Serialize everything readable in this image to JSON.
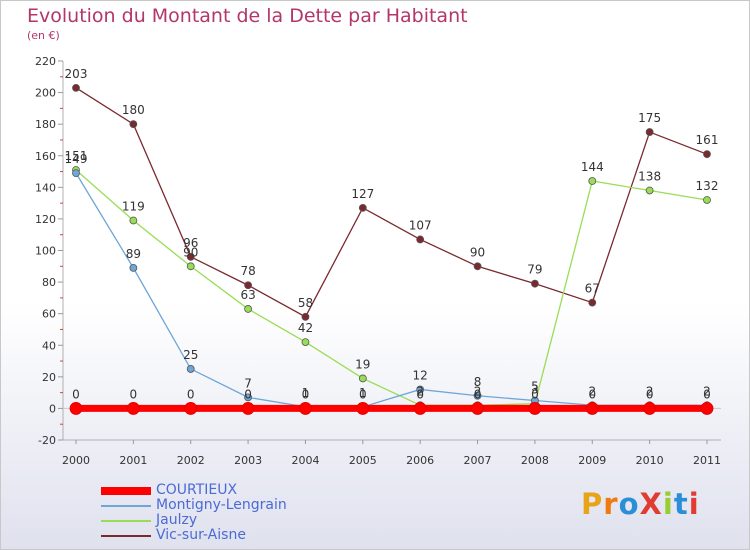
{
  "header": {
    "title": "Evolution du Montant de la Dette par Habitant",
    "subtitle": "(en €)"
  },
  "logo": {
    "text": "ProXiti",
    "colors": [
      "#e8a317",
      "#f07a10",
      "#2a8fd6",
      "#e03c31",
      "#9acd32",
      "#2a8fd6",
      "#e03c31"
    ]
  },
  "chart_data": {
    "type": "line",
    "x": [
      "2000",
      "2001",
      "2002",
      "2003",
      "2004",
      "2005",
      "2006",
      "2007",
      "2008",
      "2009",
      "2010",
      "2011"
    ],
    "ylim": [
      -20,
      220
    ],
    "yticks": [
      "-20",
      "0",
      "20",
      "40",
      "60",
      "80",
      "100",
      "120",
      "140",
      "160",
      "180",
      "200",
      "220"
    ],
    "grid": false,
    "legend_position": "bottom-left",
    "series": [
      {
        "name": "COURTIEUX",
        "color": "#ff0000",
        "values": [
          0,
          0,
          0,
          0,
          0,
          0,
          0,
          0,
          0,
          0,
          0,
          0
        ],
        "labels": [
          "0",
          "0",
          "0",
          "0",
          "0",
          "0",
          "0",
          "0",
          "0",
          "0",
          "0",
          "0"
        ]
      },
      {
        "name": "Montigny-Lengrain",
        "color": "#6ea6d8",
        "values": [
          149,
          89,
          25,
          7,
          1,
          1,
          12,
          8,
          5,
          2,
          2,
          2
        ],
        "labels": [
          "149",
          "89",
          "25",
          "7",
          "1",
          "1",
          "12",
          "8",
          "5",
          "2",
          "2",
          "2"
        ]
      },
      {
        "name": "Jaulzy",
        "color": "#99dd55",
        "values": [
          151,
          119,
          90,
          63,
          42,
          19,
          2,
          2,
          3,
          144,
          138,
          132
        ],
        "labels": [
          "151",
          "119",
          "90",
          "63",
          "42",
          "19",
          "2",
          "2",
          "3",
          "144",
          "138",
          "132"
        ]
      },
      {
        "name": "Vic-sur-Aisne",
        "color": "#7a2a2e",
        "values": [
          203,
          180,
          96,
          78,
          58,
          127,
          107,
          90,
          79,
          67,
          175,
          161
        ],
        "labels": [
          "203",
          "180",
          "96",
          "78",
          "58",
          "127",
          "107",
          "90",
          "79",
          "67",
          "175",
          "161"
        ]
      }
    ]
  }
}
